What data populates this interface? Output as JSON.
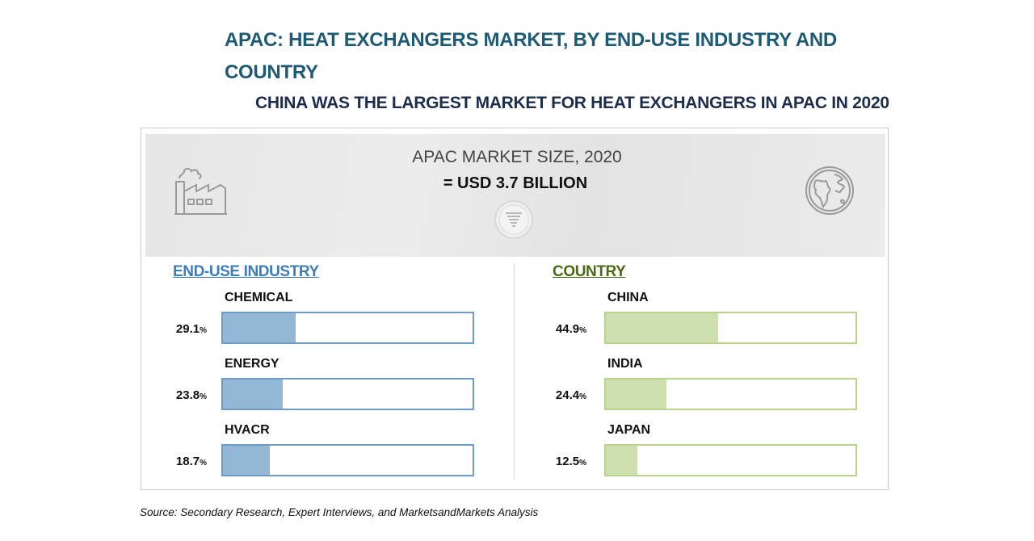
{
  "title": "APAC: HEAT EXCHANGERS MARKET, BY END-USE INDUSTRY AND COUNTRY",
  "subtitle": "CHINA WAS THE LARGEST MARKET FOR HEAT EXCHANGERS IN APAC IN 2020",
  "market": {
    "label": "APAC MARKET SIZE, 2020",
    "value": "= USD 3.7 BILLION"
  },
  "icons": [
    "factory-icon",
    "globe-icon",
    "funnel-icon"
  ],
  "colors": {
    "title": "#1d5a73",
    "industry_accent": "#3d7db8",
    "industry_bar": "#94b7d6",
    "industry_border": "#6d9bc6",
    "country_accent": "#4b6a15",
    "country_bar": "#cfe0b0",
    "country_border": "#b7d48a"
  },
  "source": "Source: Secondary Research, Expert Interviews, and MarketsandMarkets Analysis",
  "chart_data": [
    {
      "type": "bar",
      "title": "END-USE INDUSTRY",
      "categories": [
        "CHEMICAL",
        "ENERGY",
        "HVACR"
      ],
      "values": [
        29.1,
        23.8,
        18.7
      ],
      "unit": "%",
      "ylim": [
        0,
        100
      ]
    },
    {
      "type": "bar",
      "title": "COUNTRY",
      "categories": [
        "CHINA",
        "INDIA",
        "JAPAN"
      ],
      "values": [
        44.9,
        24.4,
        12.5
      ],
      "unit": "%",
      "ylim": [
        0,
        100
      ]
    }
  ]
}
